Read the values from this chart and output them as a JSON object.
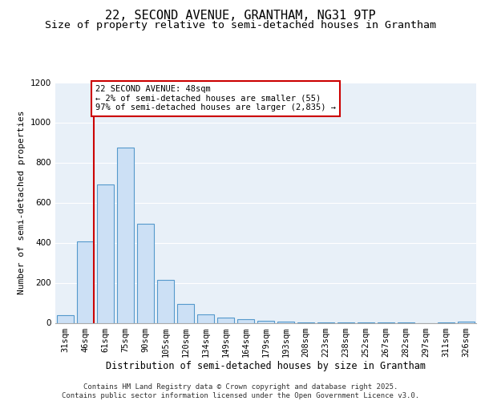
{
  "title1": "22, SECOND AVENUE, GRANTHAM, NG31 9TP",
  "title2": "Size of property relative to semi-detached houses in Grantham",
  "xlabel": "Distribution of semi-detached houses by size in Grantham",
  "ylabel": "Number of semi-detached properties",
  "categories": [
    "31sqm",
    "46sqm",
    "61sqm",
    "75sqm",
    "90sqm",
    "105sqm",
    "120sqm",
    "134sqm",
    "149sqm",
    "164sqm",
    "179sqm",
    "193sqm",
    "208sqm",
    "223sqm",
    "238sqm",
    "252sqm",
    "267sqm",
    "282sqm",
    "297sqm",
    "311sqm",
    "326sqm"
  ],
  "values": [
    40,
    405,
    690,
    875,
    495,
    215,
    95,
    42,
    25,
    20,
    10,
    5,
    3,
    2,
    2,
    1,
    1,
    1,
    0,
    1,
    8
  ],
  "bar_color": "#cce0f5",
  "bar_edge_color": "#5599cc",
  "vline_color": "#cc0000",
  "vline_x": 1.42,
  "annotation_text": "22 SECOND AVENUE: 48sqm\n← 2% of semi-detached houses are smaller (55)\n97% of semi-detached houses are larger (2,835) →",
  "annotation_box_color": "#ffffff",
  "annotation_box_edge": "#cc0000",
  "ylim": [
    0,
    1200
  ],
  "yticks": [
    0,
    200,
    400,
    600,
    800,
    1000,
    1200
  ],
  "background_color": "#e8f0f8",
  "footer": "Contains HM Land Registry data © Crown copyright and database right 2025.\nContains public sector information licensed under the Open Government Licence v3.0.",
  "title1_fontsize": 11,
  "title2_fontsize": 9.5,
  "xlabel_fontsize": 8.5,
  "ylabel_fontsize": 8,
  "tick_fontsize": 7.5,
  "footer_fontsize": 6.5
}
